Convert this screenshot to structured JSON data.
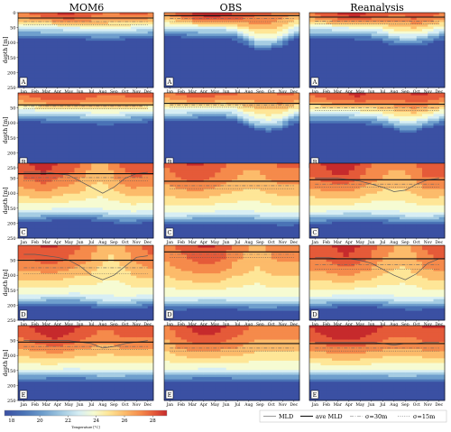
{
  "chart_data": {
    "type": "heatmap",
    "column_titles": [
      "MOM6",
      "OBS",
      "Reanalysis"
    ],
    "row_labels": [
      "A",
      "B",
      "C",
      "D",
      "E"
    ],
    "ylabel": "depth [m]",
    "ytick_labels_first_row": [
      "0",
      "50",
      "100",
      "150",
      "200",
      "250"
    ],
    "ytick_labels_other_rows": [
      "50",
      "100",
      "150",
      "200",
      "250"
    ],
    "months": [
      "Jan",
      "Feb",
      "Mar",
      "Apr",
      "May",
      "Jun",
      "Jul",
      "Aug",
      "Sep",
      "Oct",
      "Nov",
      "Dec"
    ],
    "depth_range": [
      0,
      250
    ],
    "colorbar": {
      "ticks": [
        18,
        20,
        22,
        24,
        26,
        28
      ],
      "range": [
        17.5,
        29.0
      ],
      "label": "Temperature [°C]",
      "colors": [
        "#3b50a3",
        "#4a73b6",
        "#6f9fcd",
        "#a6cde3",
        "#d7eef4",
        "#f6fbd2",
        "#fee697",
        "#fcbb6a",
        "#f58a4b",
        "#e55a39",
        "#c62a2c"
      ]
    },
    "legend": [
      "MLD",
      "ave MLD",
      "σ=30m",
      "σ=15m"
    ],
    "panels": [
      {
        "row": "A",
        "col": "MOM6",
        "surf": [
          26.5,
          27,
          27.5,
          28,
          28.2,
          28,
          27.5,
          27,
          26.8,
          27,
          27.2,
          27
        ],
        "iso_shape": [
          48,
          48,
          50,
          50,
          52,
          52,
          55,
          57,
          57,
          55,
          52,
          50
        ],
        "ave_mld": 18,
        "mld": [
          18,
          18,
          18,
          18,
          18,
          18,
          18,
          18,
          18,
          18,
          18,
          18
        ],
        "sig30": [
          30,
          30,
          30,
          30,
          30,
          30,
          30,
          30,
          30,
          30,
          30,
          30
        ],
        "sig15": [
          40,
          40,
          40,
          40,
          40,
          40,
          40,
          40,
          40,
          40,
          40,
          40
        ]
      },
      {
        "row": "A",
        "col": "OBS",
        "surf": [
          26,
          27,
          28,
          28.5,
          28.8,
          28.5,
          28,
          27.5,
          27,
          27,
          26.5,
          26
        ],
        "iso_shape": [
          45,
          45,
          48,
          50,
          50,
          50,
          55,
          70,
          90,
          90,
          80,
          60
        ],
        "ave_mld": 10,
        "mld": [
          10,
          10,
          10,
          10,
          10,
          10,
          10,
          10,
          10,
          10,
          10,
          10
        ],
        "sig30": [
          20,
          20,
          20,
          20,
          20,
          20,
          20,
          20,
          20,
          20,
          20,
          20
        ],
        "sig15": [
          30,
          30,
          30,
          30,
          30,
          30,
          30,
          30,
          30,
          30,
          30,
          30
        ]
      },
      {
        "row": "A",
        "col": "Reanalysis",
        "surf": [
          26.5,
          27.5,
          28,
          28.5,
          28.5,
          28,
          27.5,
          27,
          27,
          27.5,
          27.5,
          27
        ],
        "iso_shape": [
          50,
          50,
          52,
          52,
          55,
          55,
          60,
          70,
          75,
          75,
          70,
          60
        ],
        "ave_mld": 15,
        "mld": [
          15,
          15,
          15,
          15,
          15,
          15,
          15,
          15,
          15,
          15,
          15,
          15
        ],
        "sig30": [
          28,
          28,
          28,
          28,
          28,
          28,
          28,
          28,
          28,
          28,
          28,
          28
        ],
        "sig15": [
          38,
          38,
          38,
          38,
          38,
          38,
          38,
          38,
          38,
          38,
          38,
          38
        ]
      },
      {
        "row": "B",
        "col": "MOM6",
        "surf": [
          27,
          27.5,
          28,
          28,
          28,
          28,
          27.5,
          27,
          27,
          27,
          27.5,
          27.5
        ],
        "iso_shape": [
          60,
          60,
          62,
          65,
          65,
          65,
          68,
          70,
          70,
          68,
          65,
          62
        ],
        "ave_mld": 40,
        "mld": [
          40,
          40,
          40,
          40,
          40,
          40,
          40,
          40,
          40,
          40,
          40,
          40
        ],
        "sig30": [
          45,
          45,
          45,
          45,
          45,
          45,
          45,
          45,
          45,
          45,
          45,
          45
        ],
        "sig15": [
          52,
          52,
          52,
          52,
          52,
          52,
          52,
          52,
          52,
          52,
          52,
          52
        ]
      },
      {
        "row": "B",
        "col": "OBS",
        "surf": [
          26.5,
          27,
          27.5,
          27.5,
          27.5,
          27,
          27,
          26.5,
          26.5,
          26.5,
          27,
          27
        ],
        "iso_shape": [
          60,
          60,
          58,
          55,
          55,
          55,
          60,
          75,
          90,
          95,
          90,
          70
        ],
        "ave_mld": 35,
        "mld": [
          35,
          35,
          35,
          35,
          35,
          35,
          35,
          35,
          35,
          35,
          35,
          35
        ],
        "sig30": [
          40,
          40,
          40,
          40,
          40,
          40,
          40,
          40,
          40,
          40,
          40,
          40
        ],
        "sig15": [
          48,
          48,
          48,
          48,
          48,
          48,
          48,
          48,
          48,
          48,
          48,
          48
        ]
      },
      {
        "row": "B",
        "col": "Reanalysis",
        "surf": [
          27,
          27.5,
          28,
          28,
          28.5,
          28,
          27.5,
          27.5,
          27.5,
          28,
          28,
          27.5
        ],
        "iso_shape": [
          65,
          65,
          65,
          65,
          68,
          70,
          75,
          85,
          95,
          95,
          85,
          75
        ],
        "ave_mld": 38,
        "mld": [
          38,
          38,
          38,
          38,
          38,
          38,
          38,
          38,
          38,
          38,
          38,
          38
        ],
        "sig30": [
          50,
          50,
          50,
          50,
          50,
          50,
          50,
          50,
          50,
          50,
          50,
          50
        ],
        "sig15": [
          58,
          58,
          58,
          58,
          58,
          58,
          58,
          58,
          58,
          58,
          58,
          58
        ]
      },
      {
        "row": "C",
        "col": "MOM6",
        "surf": [
          27.5,
          28,
          28.5,
          28,
          27.5,
          27,
          26,
          25.5,
          26,
          27,
          27.5,
          27.5
        ],
        "iso_shape": [
          160,
          160,
          158,
          155,
          155,
          155,
          155,
          158,
          162,
          165,
          165,
          162
        ],
        "ave_mld": 35,
        "mld": [
          30,
          30,
          30,
          35,
          40,
          60,
          80,
          100,
          80,
          50,
          35,
          30
        ],
        "sig30": [
          48,
          48,
          48,
          48,
          48,
          48,
          48,
          48,
          48,
          48,
          48,
          48
        ],
        "sig15": [
          58,
          58,
          58,
          58,
          58,
          58,
          58,
          58,
          58,
          58,
          58,
          58
        ]
      },
      {
        "row": "C",
        "col": "OBS",
        "surf": [
          27,
          27.5,
          28,
          28,
          27.5,
          27,
          26.5,
          26,
          26,
          26.5,
          27,
          27
        ],
        "iso_shape": [
          170,
          170,
          168,
          165,
          165,
          165,
          165,
          165,
          168,
          170,
          172,
          172
        ],
        "ave_mld": 60,
        "mld": [
          60,
          60,
          60,
          60,
          60,
          60,
          60,
          60,
          60,
          60,
          60,
          60
        ],
        "sig30": [
          75,
          75,
          75,
          75,
          75,
          75,
          75,
          75,
          75,
          75,
          75,
          75
        ],
        "sig15": [
          85,
          85,
          85,
          85,
          85,
          85,
          85,
          85,
          85,
          85,
          85,
          85
        ]
      },
      {
        "row": "C",
        "col": "Reanalysis",
        "surf": [
          27.5,
          28,
          28.5,
          28.5,
          28,
          27,
          26.5,
          26,
          26,
          26.5,
          27.5,
          27.5
        ],
        "iso_shape": [
          165,
          165,
          162,
          160,
          160,
          160,
          162,
          165,
          168,
          170,
          170,
          168
        ],
        "ave_mld": 55,
        "mld": [
          50,
          50,
          50,
          55,
          60,
          70,
          80,
          95,
          90,
          70,
          55,
          50
        ],
        "sig30": [
          70,
          70,
          70,
          70,
          70,
          70,
          70,
          70,
          70,
          70,
          70,
          70
        ],
        "sig15": [
          80,
          80,
          80,
          80,
          80,
          80,
          80,
          80,
          80,
          80,
          80,
          80
        ]
      },
      {
        "row": "D",
        "col": "MOM6",
        "surf": [
          27.5,
          27.5,
          28,
          28,
          27.5,
          27,
          26.5,
          25.5,
          25,
          25.5,
          26.5,
          27
        ],
        "iso_shape": [
          170,
          170,
          168,
          165,
          165,
          165,
          170,
          175,
          178,
          178,
          175,
          172
        ],
        "ave_mld": 50,
        "mld": [
          30,
          30,
          35,
          40,
          50,
          70,
          100,
          115,
          100,
          70,
          40,
          35
        ],
        "sig30": [
          75,
          75,
          75,
          75,
          75,
          75,
          75,
          75,
          75,
          75,
          75,
          75
        ],
        "sig15": [
          95,
          95,
          95,
          95,
          95,
          95,
          95,
          95,
          95,
          95,
          95,
          95
        ]
      },
      {
        "row": "D",
        "col": "OBS",
        "surf": [
          26.5,
          27,
          27.5,
          28,
          28,
          27.5,
          26.5,
          26,
          25.5,
          26,
          26.5,
          26.5
        ],
        "iso_shape": [
          180,
          180,
          178,
          175,
          175,
          175,
          178,
          180,
          182,
          182,
          180,
          180
        ],
        "ave_mld": 22,
        "mld": [
          22,
          22,
          22,
          22,
          22,
          22,
          22,
          22,
          22,
          22,
          22,
          22
        ],
        "sig30": [
          30,
          30,
          30,
          30,
          30,
          30,
          30,
          30,
          30,
          30,
          30,
          30
        ],
        "sig15": [
          40,
          40,
          40,
          40,
          40,
          40,
          40,
          40,
          40,
          40,
          40,
          40
        ]
      },
      {
        "row": "D",
        "col": "Reanalysis",
        "surf": [
          27.5,
          27.5,
          28,
          28.5,
          28,
          27.5,
          26.5,
          26,
          25.5,
          26,
          27,
          27.5
        ],
        "iso_shape": [
          175,
          175,
          172,
          170,
          170,
          170,
          172,
          175,
          178,
          180,
          178,
          176
        ],
        "ave_mld": 45,
        "mld": [
          40,
          40,
          45,
          45,
          50,
          60,
          80,
          100,
          115,
          95,
          60,
          45
        ],
        "sig30": [
          65,
          65,
          65,
          65,
          65,
          65,
          65,
          65,
          65,
          65,
          65,
          65
        ],
        "sig15": [
          80,
          80,
          80,
          80,
          80,
          80,
          80,
          80,
          80,
          80,
          80,
          80
        ]
      },
      {
        "row": "E",
        "col": "MOM6",
        "surf": [
          27.5,
          28,
          28.5,
          29,
          28.5,
          28,
          27.5,
          27,
          27,
          27.5,
          27.5,
          27.5
        ],
        "iso_shape": [
          150,
          150,
          150,
          148,
          148,
          148,
          150,
          152,
          152,
          152,
          150,
          150
        ],
        "ave_mld": 55,
        "mld": [
          50,
          50,
          50,
          50,
          50,
          55,
          60,
          75,
          70,
          60,
          55,
          50
        ],
        "sig30": [
          70,
          70,
          70,
          70,
          70,
          70,
          70,
          70,
          70,
          70,
          70,
          70
        ],
        "sig15": [
          80,
          80,
          80,
          80,
          80,
          80,
          80,
          80,
          80,
          80,
          80,
          80
        ]
      },
      {
        "row": "E",
        "col": "OBS",
        "surf": [
          26.5,
          27.5,
          28,
          28.5,
          28.5,
          28,
          27.5,
          27,
          26.5,
          26.5,
          26.5,
          26.5
        ],
        "iso_shape": [
          150,
          150,
          150,
          148,
          148,
          148,
          150,
          150,
          150,
          150,
          150,
          150
        ],
        "ave_mld": 60,
        "mld": [
          60,
          60,
          60,
          60,
          60,
          60,
          60,
          60,
          60,
          60,
          60,
          60
        ],
        "sig30": [
          75,
          75,
          75,
          75,
          75,
          75,
          75,
          75,
          75,
          75,
          75,
          75
        ],
        "sig15": [
          85,
          85,
          85,
          85,
          85,
          85,
          85,
          85,
          85,
          85,
          85,
          85
        ]
      },
      {
        "row": "E",
        "col": "Reanalysis",
        "surf": [
          28,
          28.5,
          29,
          29,
          29,
          28.5,
          28,
          27.5,
          27.5,
          27.5,
          28,
          28
        ],
        "iso_shape": [
          150,
          150,
          150,
          150,
          150,
          150,
          150,
          152,
          152,
          152,
          150,
          150
        ],
        "ave_mld": 60,
        "mld": [
          55,
          55,
          55,
          55,
          55,
          55,
          60,
          65,
          60,
          60,
          55,
          55
        ],
        "sig30": [
          75,
          75,
          75,
          75,
          75,
          75,
          75,
          75,
          75,
          75,
          75,
          75
        ],
        "sig15": [
          85,
          85,
          85,
          85,
          85,
          85,
          85,
          85,
          85,
          85,
          85,
          85
        ]
      }
    ]
  }
}
